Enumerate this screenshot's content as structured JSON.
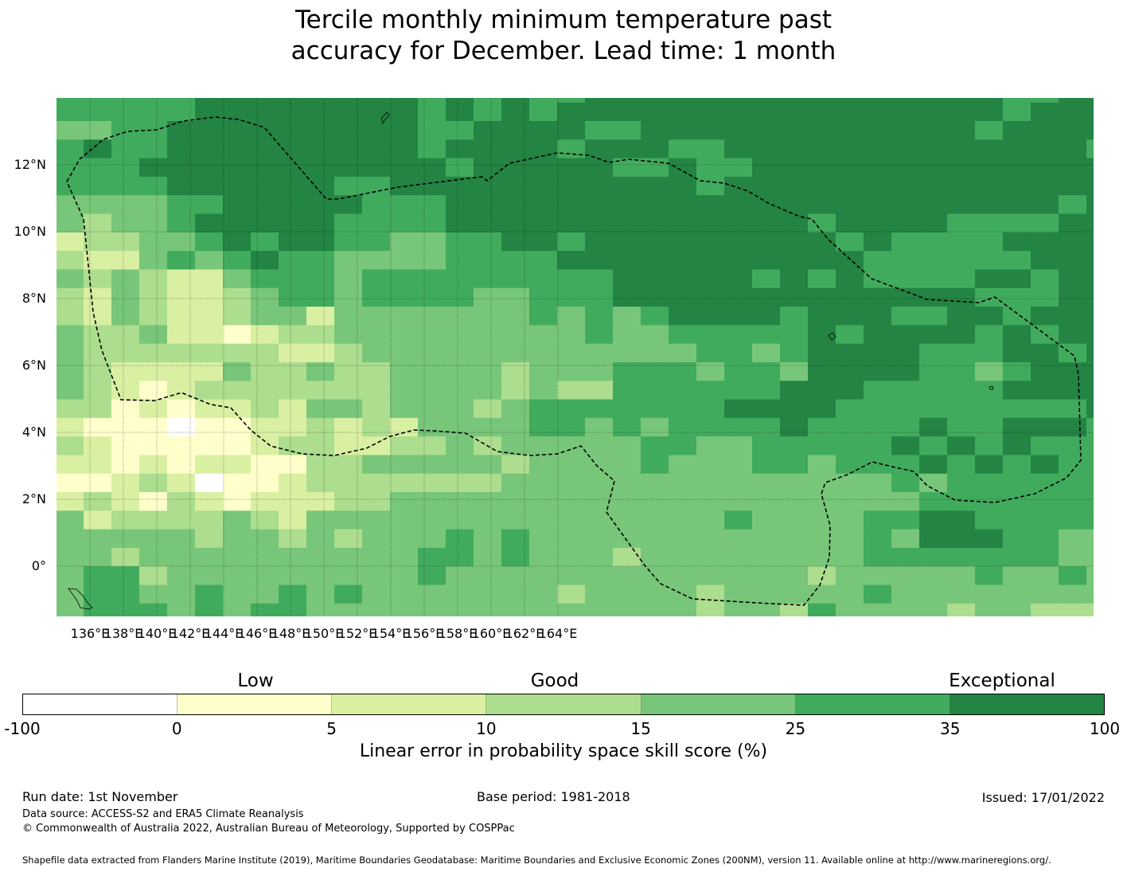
{
  "title": {
    "line1": "Tercile monthly minimum temperature past",
    "line2": "accuracy for December. Lead time: 1 month"
  },
  "map": {
    "lon_labels": [
      "136°E",
      "138°E",
      "140°E",
      "142°E",
      "144°E",
      "146°E",
      "148°E",
      "150°E",
      "152°E",
      "154°E",
      "156°E",
      "158°E",
      "160°E",
      "162°E",
      "164°E"
    ],
    "lat_labels": [
      "12°N",
      "10°N",
      "8°N",
      "6°N",
      "4°N",
      "2°N",
      "0°"
    ],
    "category_colors": [
      "#ffffff",
      "#ffffcc",
      "#d9f0a3",
      "#addd8e",
      "#78c679",
      "#41ab5d",
      "#238443"
    ],
    "grid_rows": [
      "55555666666665656556666666666666665566",
      "55555666666665656566666666666666665666",
      "44556666666665566665566666666666656666",
      "56556666666665666656665566666666666665",
      "55566666666666566666556556666666666666",
      "55556666665566666666666566666666666666",
      "44445566666555666666666666666666666656",
      "43445666665555666666666666656666555566",
      "23344565665544556656666666665655556666",
      "32245456554444555566666666666555555666",
      "43432245554555555555666665656555566566",
      "32432234554555544555666666666666655566",
      "32432234424444444545456666566655665666",
      "43342212334444444445445555565666656566",
      "43333333223444444444444554566665556656",
      "43222243343344443444555455466665545666",
      "43212333333344443433555555666555556666",
      "33121223244344434555555566665555555556",
      "21110112232324444554545555655556556665",
      "32111112332233434444455445555565656555",
      "22121221133444443444454445545556565655",
      "11232011233333334444444444444454555555",
      "23213212223344444444444444444445555555",
      "42333343244444444444444454444556655555",
      "44444344343444545444444444444546665544",
      "44344444444445545444344444444555555544",
      "45534444444445444444444444434444454454",
      "45544544545444444434444344444544444444",
      "45554545544444444444444344354444344333"
    ]
  },
  "colorbar": {
    "categories": [
      "Low",
      "Good",
      "Exceptional"
    ],
    "tick_labels": [
      "-100",
      "0",
      "5",
      "10",
      "15",
      "25",
      "35",
      "100"
    ],
    "colors": [
      "#ffffff",
      "#ffffcc",
      "#d9f0a3",
      "#addd8e",
      "#78c679",
      "#41ab5d",
      "#238443"
    ],
    "label": "Linear error in probability space skill score (%)"
  },
  "footer": {
    "run_date": "Run date: 1st November",
    "base_period": "Base period: 1981-2018",
    "issued": "Issued: 17/01/2022",
    "data_source": "Data source: ACCESS-S2 and ERA5 Climate Reanalysis",
    "copyright": "© Commonwealth of Australia 2022, Australian Bureau of Meteorology, Supported by COSPPac",
    "shapefile": "Shapefile data extracted from Flanders Marine Institute (2019), Maritime Boundaries Geodatabase: Maritime Boundaries and Exclusive Economic Zones (200NM), version 11. Available online at http://www.marineregions.org/."
  }
}
